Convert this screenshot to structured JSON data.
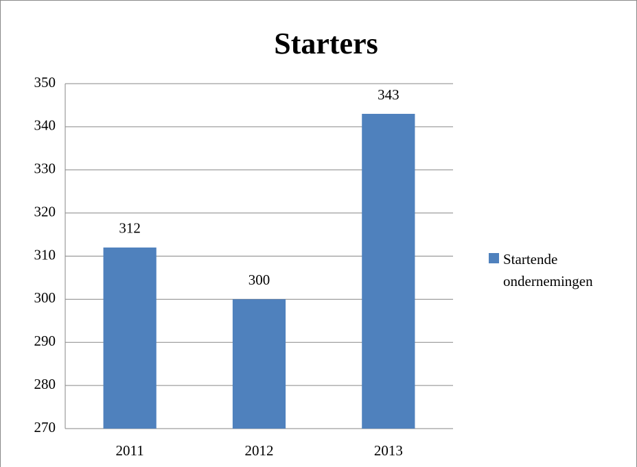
{
  "chart_data": {
    "type": "bar",
    "title": "Starters",
    "categories": [
      "2011",
      "2012",
      "2013"
    ],
    "series": [
      {
        "name": "Startende ondernemingen",
        "color": "#4f81bd",
        "values": [
          312,
          300,
          343
        ]
      }
    ],
    "ylim": [
      270,
      350
    ],
    "yticks": [
      270,
      280,
      290,
      300,
      310,
      320,
      330,
      340,
      350
    ],
    "grid": true,
    "legend": "right",
    "data_labels": true
  }
}
